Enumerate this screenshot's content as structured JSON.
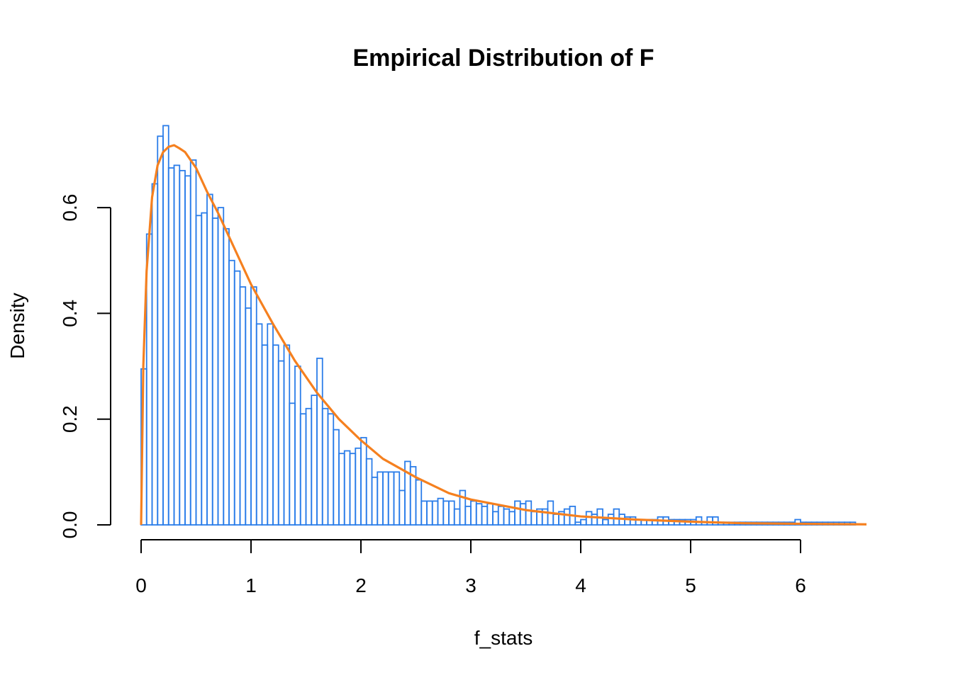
{
  "chart_data": {
    "type": "bar",
    "title": "Empirical Distribution of F",
    "xlabel": "f_stats",
    "ylabel": "Density",
    "xlim": [
      0,
      6.6
    ],
    "ylim": [
      0,
      0.76
    ],
    "x_ticks": [
      0,
      1,
      2,
      3,
      4,
      5,
      6
    ],
    "y_ticks": [
      "0.0",
      "0.2",
      "0.4",
      "0.6"
    ],
    "y_tick_values": [
      0,
      0.2,
      0.4,
      0.6
    ],
    "grid": false,
    "bin_width": 0.05,
    "bin_start": 0,
    "colors": {
      "bars": "#2b7de9",
      "curve": "#f5801f"
    },
    "series": [
      {
        "kind": "histogram",
        "values": [
          0.295,
          0.55,
          0.645,
          0.735,
          0.755,
          0.675,
          0.68,
          0.67,
          0.66,
          0.69,
          0.585,
          0.59,
          0.625,
          0.58,
          0.6,
          0.56,
          0.5,
          0.48,
          0.45,
          0.41,
          0.45,
          0.38,
          0.34,
          0.38,
          0.34,
          0.31,
          0.34,
          0.23,
          0.3,
          0.21,
          0.22,
          0.245,
          0.315,
          0.22,
          0.21,
          0.18,
          0.135,
          0.14,
          0.135,
          0.145,
          0.165,
          0.125,
          0.09,
          0.1,
          0.1,
          0.1,
          0.1,
          0.065,
          0.12,
          0.11,
          0.085,
          0.045,
          0.045,
          0.045,
          0.05,
          0.045,
          0.045,
          0.03,
          0.065,
          0.035,
          0.045,
          0.04,
          0.035,
          0.04,
          0.025,
          0.035,
          0.03,
          0.025,
          0.045,
          0.04,
          0.045,
          0.025,
          0.03,
          0.03,
          0.045,
          0.02,
          0.025,
          0.03,
          0.035,
          0.005,
          0.01,
          0.025,
          0.02,
          0.03,
          0.01,
          0.02,
          0.03,
          0.02,
          0.015,
          0.015,
          0.01,
          0.01,
          0.01,
          0.01,
          0.015,
          0.015,
          0.01,
          0.01,
          0.01,
          0.01,
          0.01,
          0.015,
          0.005,
          0.015,
          0.015,
          0.005,
          0.005,
          0.005,
          0.005,
          0.005,
          0.005,
          0.005,
          0.005,
          0.005,
          0.005,
          0.005,
          0.005,
          0.005,
          0.005,
          0.01,
          0.005,
          0.005,
          0.005,
          0.005,
          0.005,
          0.005,
          0.005,
          0.005,
          0.005,
          0.005
        ]
      },
      {
        "kind": "density-curve",
        "x": [
          0,
          0.02,
          0.05,
          0.1,
          0.15,
          0.2,
          0.25,
          0.3,
          0.35,
          0.4,
          0.5,
          0.6,
          0.7,
          0.8,
          0.9,
          1.0,
          1.2,
          1.4,
          1.6,
          1.8,
          2.0,
          2.2,
          2.5,
          2.8,
          3.0,
          3.5,
          4.0,
          4.5,
          5.0,
          5.5,
          6.0,
          6.6
        ],
        "y": [
          0,
          0.3,
          0.48,
          0.62,
          0.68,
          0.705,
          0.715,
          0.718,
          0.712,
          0.705,
          0.675,
          0.63,
          0.59,
          0.545,
          0.5,
          0.455,
          0.38,
          0.31,
          0.25,
          0.2,
          0.16,
          0.125,
          0.09,
          0.06,
          0.048,
          0.028,
          0.016,
          0.01,
          0.006,
          0.003,
          0.002,
          0.001
        ]
      }
    ]
  }
}
